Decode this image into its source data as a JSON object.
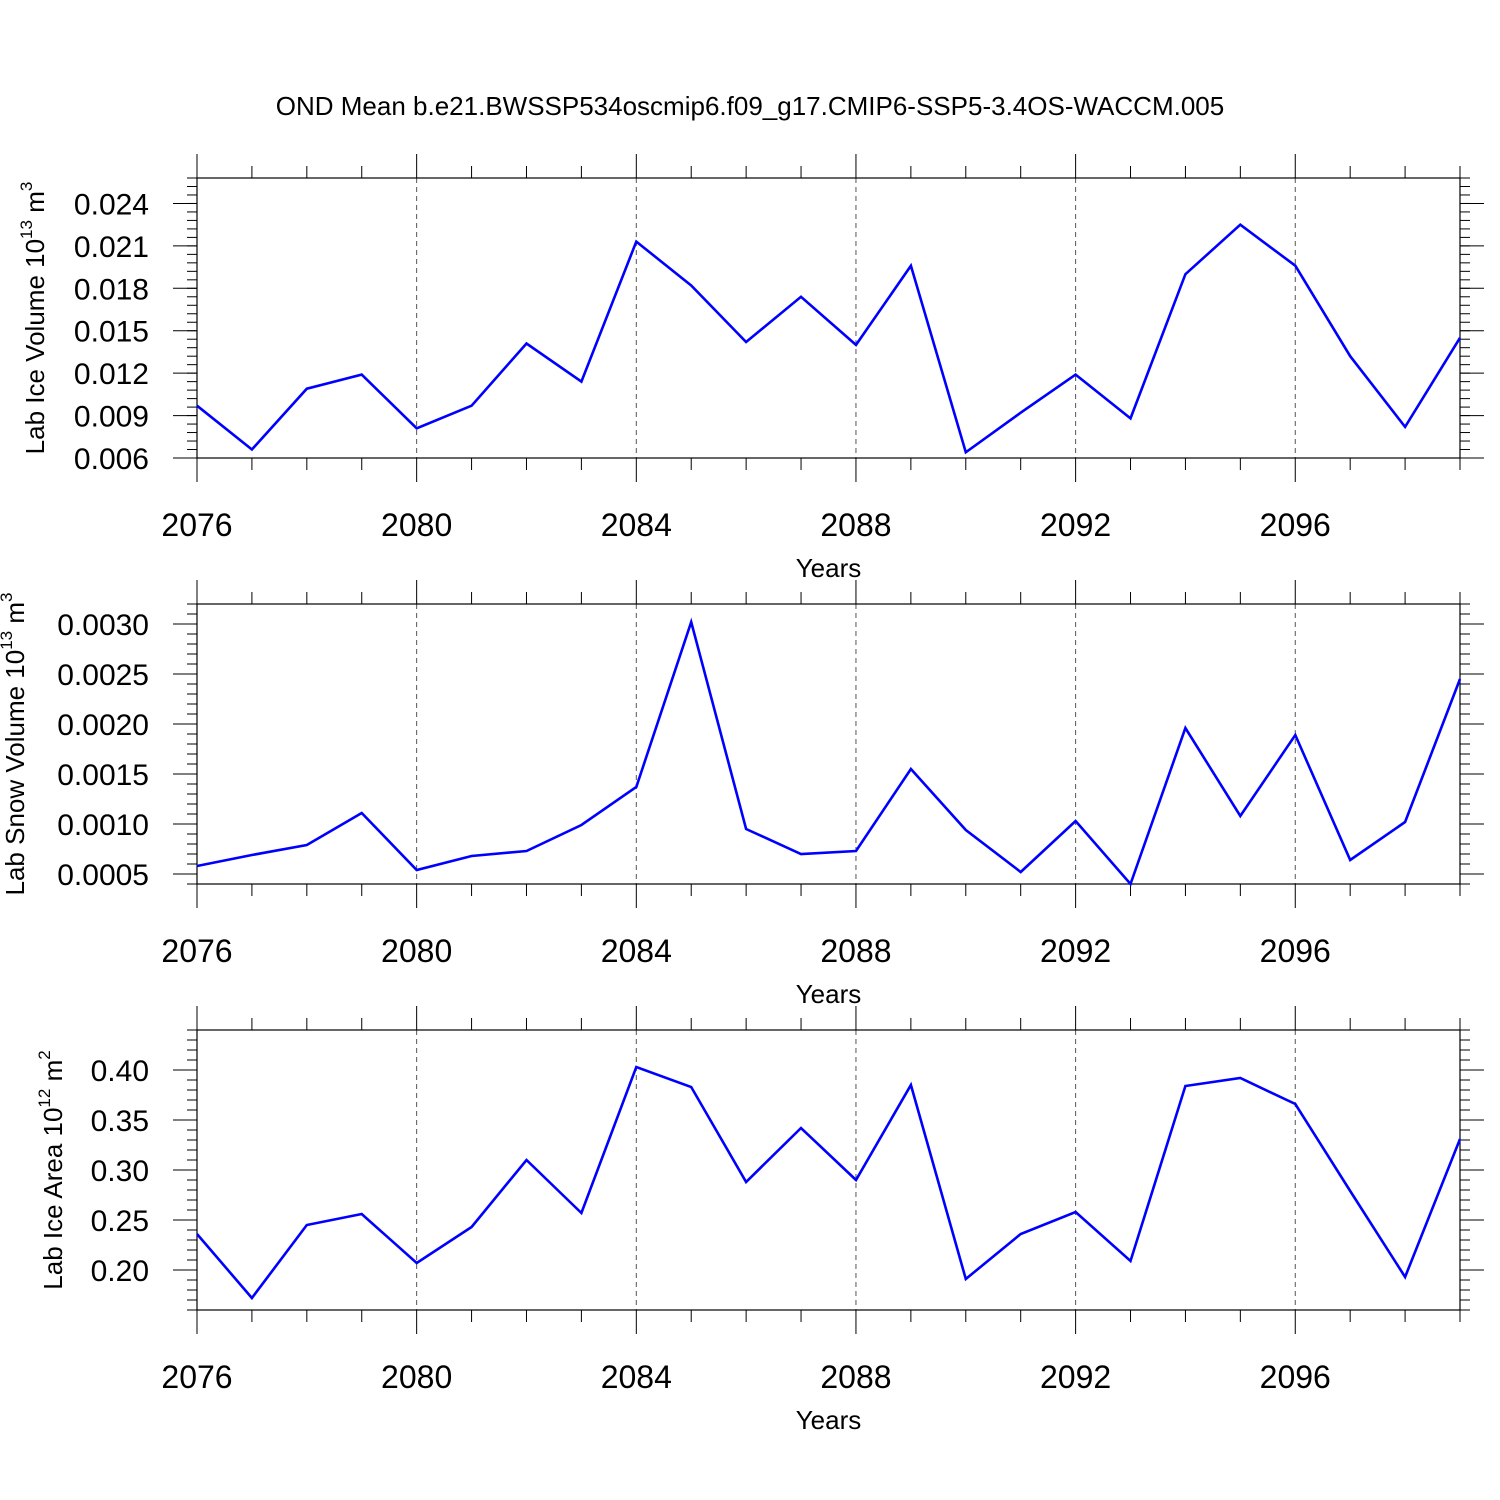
{
  "title": "OND Mean b.e21.BWSSP534oscmip6.f09_g17.CMIP6-SSP5-3.4OS-WACCM.005",
  "line_color": "#0000ff",
  "chart_data": [
    {
      "type": "line",
      "ylabel_main": "Lab Ice Volume 10",
      "ylabel_exp": "13",
      "ylabel_unit": " m",
      "ylabel_unit_exp": "3",
      "xlabel": "Years",
      "xlim": [
        2076,
        2099
      ],
      "ylim": [
        0.006,
        0.0258
      ],
      "y_ticks": [
        0.006,
        0.009,
        0.012,
        0.015,
        0.018,
        0.021,
        0.024
      ],
      "y_tick_labels": [
        "0.006",
        "0.009",
        "0.012",
        "0.015",
        "0.018",
        "0.021",
        "0.024"
      ],
      "y_minor_step": 0.0006,
      "x_ticks": [
        2076,
        2080,
        2084,
        2088,
        2092,
        2096
      ],
      "x_tick_labels": [
        "2076",
        "2080",
        "2084",
        "2088",
        "2092",
        "2096"
      ],
      "x": [
        2076,
        2077,
        2078,
        2079,
        2080,
        2081,
        2082,
        2083,
        2084,
        2085,
        2086,
        2087,
        2088,
        2089,
        2090,
        2091,
        2092,
        2093,
        2094,
        2095,
        2096,
        2097,
        2098,
        2099
      ],
      "values": [
        0.0097,
        0.0066,
        0.0109,
        0.0119,
        0.0081,
        0.0097,
        0.0141,
        0.0114,
        0.0213,
        0.0182,
        0.0142,
        0.0174,
        0.014,
        0.0196,
        0.0064,
        0.0092,
        0.0119,
        0.0088,
        0.019,
        0.0225,
        0.0196,
        0.0132,
        0.0082,
        0.0145
      ]
    },
    {
      "type": "line",
      "ylabel_main": "Lab Snow Volume 10",
      "ylabel_exp": "13",
      "ylabel_unit": " m",
      "ylabel_unit_exp": "3",
      "xlabel": "Years",
      "xlim": [
        2076,
        2099
      ],
      "ylim": [
        0.0004,
        0.0032
      ],
      "y_ticks": [
        0.0005,
        0.001,
        0.0015,
        0.002,
        0.0025,
        0.003
      ],
      "y_tick_labels": [
        "0.0005",
        "0.0010",
        "0.0015",
        "0.0020",
        "0.0025",
        "0.0030"
      ],
      "y_minor_step": 0.0001,
      "x_ticks": [
        2076,
        2080,
        2084,
        2088,
        2092,
        2096
      ],
      "x_tick_labels": [
        "2076",
        "2080",
        "2084",
        "2088",
        "2092",
        "2096"
      ],
      "x": [
        2076,
        2077,
        2078,
        2079,
        2080,
        2081,
        2082,
        2083,
        2084,
        2085,
        2086,
        2087,
        2088,
        2089,
        2090,
        2091,
        2092,
        2093,
        2094,
        2095,
        2096,
        2097,
        2098,
        2099
      ],
      "values": [
        0.00058,
        0.00069,
        0.00079,
        0.00111,
        0.00054,
        0.00068,
        0.00073,
        0.00099,
        0.00137,
        0.00302,
        0.00095,
        0.0007,
        0.00073,
        0.00155,
        0.00094,
        0.00052,
        0.00103,
        0.0004,
        0.00196,
        0.00108,
        0.00189,
        0.00064,
        0.00102,
        0.00245
      ]
    },
    {
      "type": "line",
      "ylabel_main": "Lab Ice Area 10",
      "ylabel_exp": "12",
      "ylabel_unit": " m",
      "ylabel_unit_exp": "2",
      "xlabel": "Years",
      "xlim": [
        2076,
        2099
      ],
      "ylim": [
        0.16,
        0.44
      ],
      "y_ticks": [
        0.2,
        0.25,
        0.3,
        0.35,
        0.4
      ],
      "y_tick_labels": [
        "0.20",
        "0.25",
        "0.30",
        "0.35",
        "0.40"
      ],
      "y_minor_step": 0.01,
      "x_ticks": [
        2076,
        2080,
        2084,
        2088,
        2092,
        2096
      ],
      "x_tick_labels": [
        "2076",
        "2080",
        "2084",
        "2088",
        "2092",
        "2096"
      ],
      "x": [
        2076,
        2077,
        2078,
        2079,
        2080,
        2081,
        2082,
        2083,
        2084,
        2085,
        2086,
        2087,
        2088,
        2089,
        2090,
        2091,
        2092,
        2093,
        2094,
        2095,
        2096,
        2097,
        2098,
        2099
      ],
      "values": [
        0.236,
        0.172,
        0.245,
        0.256,
        0.207,
        0.243,
        0.31,
        0.257,
        0.403,
        0.383,
        0.288,
        0.342,
        0.29,
        0.385,
        0.191,
        0.236,
        0.258,
        0.209,
        0.384,
        0.392,
        0.366,
        0.279,
        0.193,
        0.331
      ]
    }
  ]
}
